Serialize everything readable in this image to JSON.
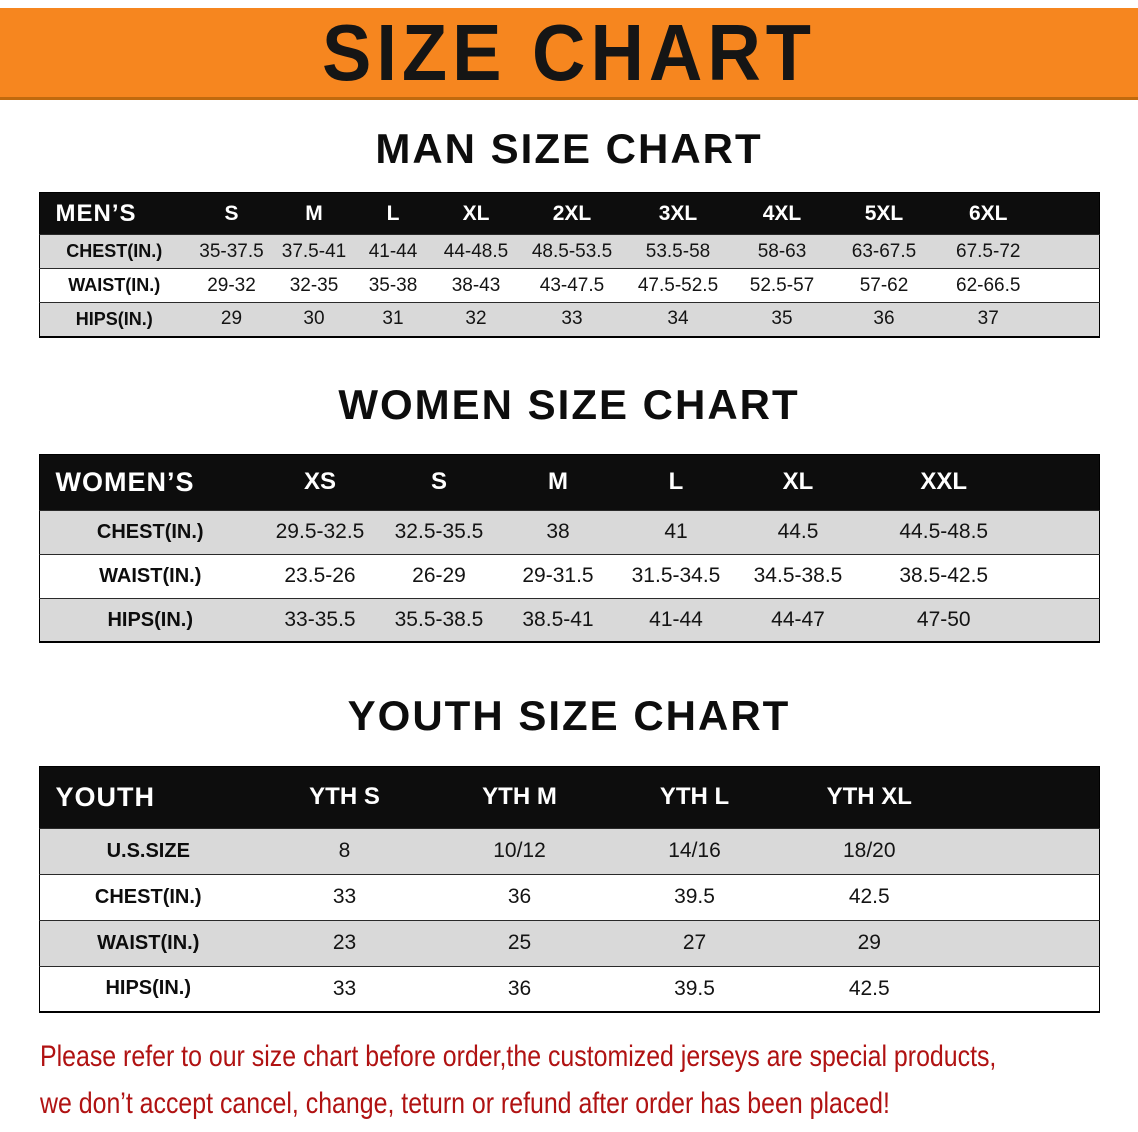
{
  "banner": {
    "title": "SIZE CHART"
  },
  "colors": {
    "banner_bg": "#F6861F",
    "table_header_bg": "#0D0D0D",
    "row_stripe": "#D9D9D9",
    "disclaimer_text": "#B01212"
  },
  "chart_data": [
    {
      "type": "table",
      "title": "MAN SIZE CHART",
      "columns": [
        "MEN’S",
        "S",
        "M",
        "L",
        "XL",
        "2XL",
        "3XL",
        "4XL",
        "5XL",
        "6XL"
      ],
      "rows": [
        [
          "CHEST(IN.)",
          "35-37.5",
          "37.5-41",
          "41-44",
          "44-48.5",
          "48.5-53.5",
          "53.5-58",
          "58-63",
          "63-67.5",
          "67.5-72"
        ],
        [
          "WAIST(IN.)",
          "29-32",
          "32-35",
          "35-38",
          "38-43",
          "43-47.5",
          "47.5-52.5",
          "52.5-57",
          "57-62",
          "62-66.5"
        ],
        [
          "HIPS(IN.)",
          "29",
          "30",
          "31",
          "32",
          "33",
          "34",
          "35",
          "36",
          "37"
        ]
      ]
    },
    {
      "type": "table",
      "title": "WOMEN SIZE CHART",
      "columns": [
        "WOMEN’S",
        "XS",
        "S",
        "M",
        "L",
        "XL",
        "XXL"
      ],
      "rows": [
        [
          "CHEST(IN.)",
          "29.5-32.5",
          "32.5-35.5",
          "38",
          "41",
          "44.5",
          "44.5-48.5"
        ],
        [
          "WAIST(IN.)",
          "23.5-26",
          "26-29",
          "29-31.5",
          "31.5-34.5",
          "34.5-38.5",
          "38.5-42.5"
        ],
        [
          "HIPS(IN.)",
          "33-35.5",
          "35.5-38.5",
          "38.5-41",
          "41-44",
          "44-47",
          "47-50"
        ]
      ]
    },
    {
      "type": "table",
      "title": "YOUTH SIZE CHART",
      "columns": [
        "YOUTH",
        "YTH S",
        "YTH M",
        "YTH L",
        "YTH XL"
      ],
      "rows": [
        [
          "U.S.SIZE",
          "8",
          "10/12",
          "14/16",
          "18/20"
        ],
        [
          "CHEST(IN.)",
          "33",
          "36",
          "39.5",
          "42.5"
        ],
        [
          "WAIST(IN.)",
          "23",
          "25",
          "27",
          "29"
        ],
        [
          "HIPS(IN.)",
          "33",
          "36",
          "39.5",
          "42.5"
        ]
      ]
    }
  ],
  "disclaimer": {
    "line1": "Please refer to our size chart before order,the customized jerseys are special products,",
    "line2": "we don’t accept cancel, change, teturn or refund after order has been placed!"
  }
}
